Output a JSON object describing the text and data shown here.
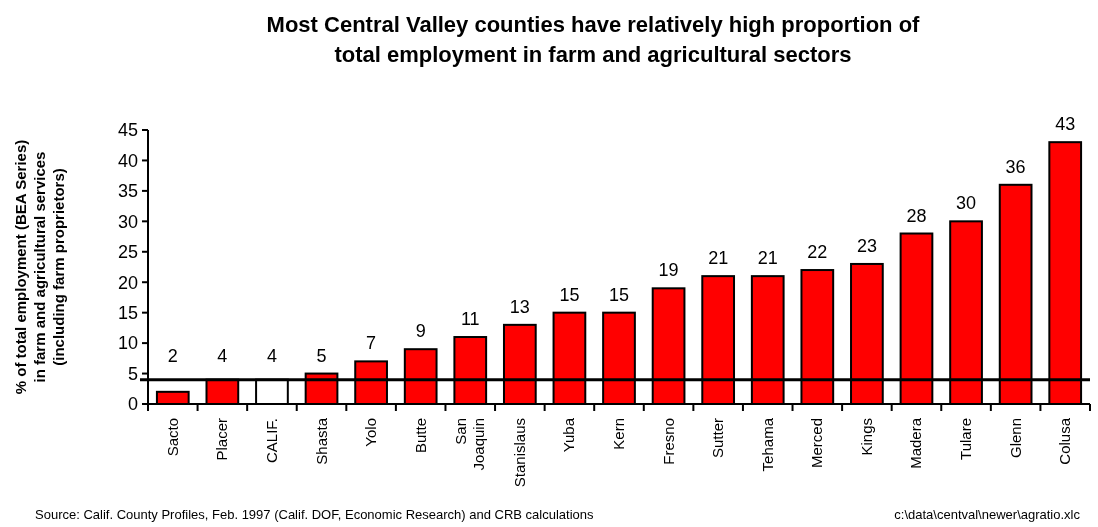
{
  "chart_data": {
    "type": "bar",
    "title": "Most Central Valley counties have relatively high proportion of\ntotal employment in farm and agricultural sectors",
    "ylabel": "% of total employment (BEA Series)\nin farm and agricultural services\n(including farm proprietors)",
    "categories": [
      "Sacto",
      "Placer",
      "CALIF.",
      "Shasta",
      "Yolo",
      "Butte",
      "San Joaquin",
      "Stanislaus",
      "Yuba",
      "Kern",
      "Fresno",
      "Sutter",
      "Tehama",
      "Merced",
      "Kings",
      "Madera",
      "Tulare",
      "Glenn",
      "Colusa"
    ],
    "values": [
      2,
      4,
      4,
      5,
      7,
      9,
      11,
      13,
      15,
      15,
      19,
      21,
      21,
      22,
      23,
      28,
      30,
      36,
      43
    ],
    "colors": [
      "#ff0000",
      "#ff0000",
      "#ffffff",
      "#ff0000",
      "#ff0000",
      "#ff0000",
      "#ff0000",
      "#ff0000",
      "#ff0000",
      "#ff0000",
      "#ff0000",
      "#ff0000",
      "#ff0000",
      "#ff0000",
      "#ff0000",
      "#ff0000",
      "#ff0000",
      "#ff0000",
      "#ff0000"
    ],
    "data_labels": true,
    "ylim": [
      0,
      45
    ],
    "yticks": [
      0,
      5,
      10,
      15,
      20,
      25,
      30,
      35,
      40,
      45
    ],
    "grid": false,
    "ref_lines": [
      {
        "axis": "y",
        "value": 4,
        "color": "#000000"
      }
    ],
    "annotations": [
      "Source: Calif. County Profiles, Feb. 1997 (Calif. DOF, Economic Research) and CRB calculations",
      "c:\\data\\centval\\newer\\agratio.xlc"
    ]
  }
}
